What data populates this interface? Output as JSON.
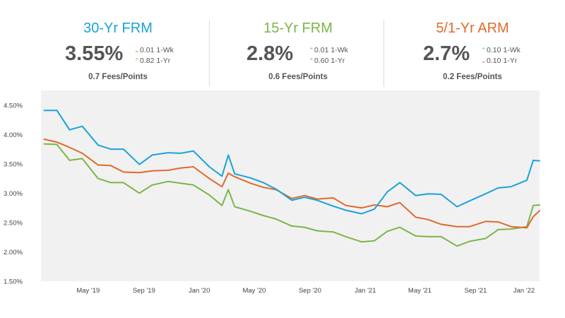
{
  "stats": [
    {
      "title": "30-Yr FRM",
      "color": "#1aa3d9",
      "rate": "3.55%",
      "week": {
        "value": "0.01",
        "label": "1-Wk",
        "direction": "down",
        "arrow": "⌄",
        "color": "#e06a2b"
      },
      "year": {
        "value": "0.82",
        "label": "1-Yr",
        "direction": "up",
        "arrow": "⌃",
        "color": "#7ab648"
      },
      "fees": "0.7 Fees/Points"
    },
    {
      "title": "15-Yr FRM",
      "color": "#7ab648",
      "rate": "2.8%",
      "week": {
        "value": "0.01",
        "label": "1-Wk",
        "direction": "up",
        "arrow": "⌃",
        "color": "#7ab648"
      },
      "year": {
        "value": "0.60",
        "label": "1-Yr",
        "direction": "up",
        "arrow": "⌃",
        "color": "#7ab648"
      },
      "fees": "0.6 Fees/Points"
    },
    {
      "title": "5/1-Yr ARM",
      "color": "#e06a2b",
      "rate": "2.7%",
      "week": {
        "value": "0.10",
        "label": "1-Wk",
        "direction": "up",
        "arrow": "⌃",
        "color": "#7ab648"
      },
      "year": {
        "value": "0.10",
        "label": "1-Yr",
        "direction": "down",
        "arrow": "⌄",
        "color": "#e06a2b"
      },
      "fees": "0.2 Fees/Points"
    }
  ],
  "chart_data": {
    "type": "line",
    "y_ticks": [
      "4.50%",
      "4.00%",
      "3.50%",
      "3.00%",
      "2.50%",
      "2.00%",
      "1.50%"
    ],
    "x_ticks": [
      "May '19",
      "Sep '19",
      "Jan '20",
      "May '20",
      "Sep '20",
      "Jan '21",
      "May '21",
      "Sep '21",
      "Jan '22"
    ],
    "ylim": [
      1.5,
      4.75
    ],
    "xlim": [
      "2019-01-31",
      "2022-02-03"
    ],
    "grid": false,
    "x": [
      "2019-02-07",
      "2019-03-07",
      "2019-04-04",
      "2019-05-02",
      "2019-06-06",
      "2019-07-04",
      "2019-08-01",
      "2019-09-05",
      "2019-10-03",
      "2019-11-07",
      "2019-12-05",
      "2020-01-02",
      "2020-02-06",
      "2020-03-05",
      "2020-03-19",
      "2020-04-02",
      "2020-05-07",
      "2020-06-04",
      "2020-07-02",
      "2020-08-06",
      "2020-09-03",
      "2020-10-01",
      "2020-11-05",
      "2020-12-03",
      "2021-01-07",
      "2021-02-04",
      "2021-03-04",
      "2021-04-01",
      "2021-05-06",
      "2021-06-03",
      "2021-07-01",
      "2021-08-05",
      "2021-09-02",
      "2021-10-07",
      "2021-11-04",
      "2021-12-02",
      "2022-01-06",
      "2022-01-20",
      "2022-02-03"
    ],
    "series": [
      {
        "name": "30-Yr FRM",
        "color": "#1aa3d9",
        "values": [
          4.41,
          4.41,
          4.08,
          4.14,
          3.82,
          3.75,
          3.75,
          3.49,
          3.65,
          3.69,
          3.68,
          3.72,
          3.45,
          3.29,
          3.65,
          3.33,
          3.26,
          3.18,
          3.07,
          2.88,
          2.93,
          2.88,
          2.78,
          2.71,
          2.65,
          2.73,
          3.02,
          3.18,
          2.96,
          2.99,
          2.98,
          2.77,
          2.87,
          2.99,
          3.09,
          3.11,
          3.22,
          3.56,
          3.55
        ]
      },
      {
        "name": "15-Yr FRM",
        "color": "#7ab648",
        "values": [
          3.84,
          3.83,
          3.56,
          3.59,
          3.25,
          3.18,
          3.18,
          3.0,
          3.14,
          3.2,
          3.17,
          3.14,
          2.97,
          2.79,
          3.06,
          2.77,
          2.69,
          2.62,
          2.56,
          2.44,
          2.42,
          2.36,
          2.34,
          2.26,
          2.17,
          2.19,
          2.35,
          2.42,
          2.27,
          2.26,
          2.26,
          2.1,
          2.18,
          2.23,
          2.38,
          2.39,
          2.43,
          2.79,
          2.8
        ]
      },
      {
        "name": "5/1-Yr ARM",
        "color": "#e06a2b",
        "values": [
          3.92,
          3.87,
          3.78,
          3.68,
          3.48,
          3.47,
          3.36,
          3.35,
          3.38,
          3.39,
          3.43,
          3.45,
          3.25,
          3.11,
          3.34,
          3.28,
          3.17,
          3.1,
          3.06,
          2.91,
          2.96,
          2.9,
          2.92,
          2.79,
          2.75,
          2.8,
          2.77,
          2.84,
          2.59,
          2.55,
          2.47,
          2.43,
          2.43,
          2.52,
          2.51,
          2.43,
          2.41,
          2.6,
          2.7
        ]
      }
    ]
  }
}
